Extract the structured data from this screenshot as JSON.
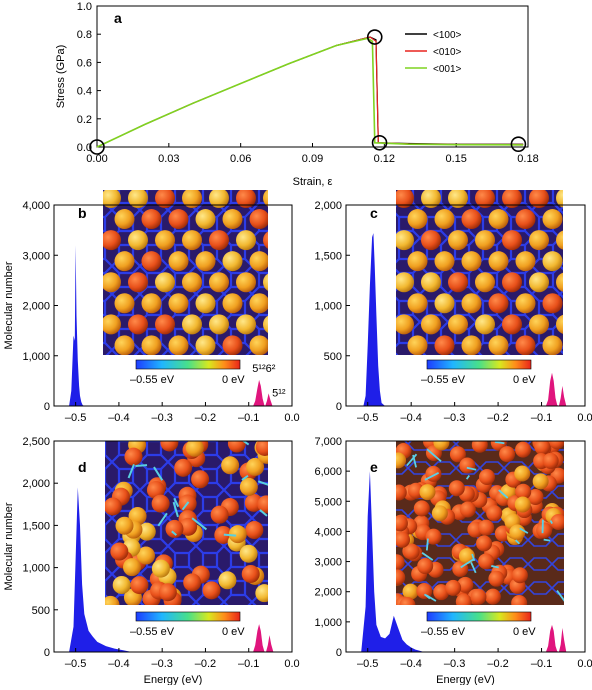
{
  "chart_data": [
    {
      "panel": "a",
      "type": "line",
      "xlabel": "Strain, ε",
      "ylabel": "Stress (GPa)",
      "xlim": [
        0,
        0.18
      ],
      "ylim": [
        0,
        1.0
      ],
      "xticks": [
        "0.00",
        "0.03",
        "0.06",
        "0.09",
        "0.12",
        "0.15",
        "0.18"
      ],
      "yticks": [
        "0.0",
        "0.2",
        "0.4",
        "0.6",
        "0.8",
        "1.0"
      ],
      "legend_position": "top-right",
      "series": [
        {
          "name": "<100>",
          "color": "#000000",
          "x": [
            0.0,
            0.02,
            0.04,
            0.06,
            0.08,
            0.1,
            0.114,
            0.1165,
            0.1175,
            0.13,
            0.15,
            0.178
          ],
          "y": [
            0.0,
            0.16,
            0.31,
            0.45,
            0.59,
            0.72,
            0.78,
            0.76,
            0.03,
            0.025,
            0.02,
            0.02
          ]
        },
        {
          "name": "<010>",
          "color": "#e8231f",
          "x": [
            0.0,
            0.02,
            0.04,
            0.06,
            0.08,
            0.1,
            0.114,
            0.1165,
            0.1175,
            0.13,
            0.15,
            0.178
          ],
          "y": [
            0.0,
            0.16,
            0.31,
            0.45,
            0.59,
            0.72,
            0.78,
            0.75,
            0.03,
            0.022,
            0.018,
            0.018
          ]
        },
        {
          "name": "<001>",
          "color": "#7fd321",
          "x": [
            0.0,
            0.02,
            0.04,
            0.06,
            0.08,
            0.1,
            0.113,
            0.115,
            0.116,
            0.13,
            0.15,
            0.178
          ],
          "y": [
            0.0,
            0.16,
            0.31,
            0.45,
            0.59,
            0.72,
            0.77,
            0.75,
            0.03,
            0.02,
            0.016,
            0.015
          ]
        }
      ],
      "markers_x": [
        0.0,
        0.116,
        0.118,
        0.176
      ],
      "markers_y": [
        0.0,
        0.78,
        0.03,
        0.02
      ]
    },
    {
      "panel": "b",
      "type": "area",
      "ylabel": "Molecular number",
      "xlim": [
        -0.55,
        0.0
      ],
      "ylim": [
        0,
        4000
      ],
      "yticks": [
        "0",
        "1,000",
        "2,000",
        "3,000",
        "4,000"
      ],
      "xticks": [
        "–0.5",
        "–0.4",
        "–0.3",
        "–0.2",
        "–0.1",
        "0.0"
      ],
      "annotations": [
        "5¹²6²",
        "5¹²"
      ],
      "blue_x": [
        -0.515,
        -0.51,
        -0.505,
        -0.502,
        -0.5,
        -0.498,
        -0.495,
        -0.492,
        -0.49,
        -0.487,
        -0.484,
        -0.48
      ],
      "blue_y": [
        0,
        300,
        1400,
        1300,
        3200,
        1800,
        900,
        400,
        200,
        80,
        20,
        0
      ],
      "pink_x": [
        -0.09,
        -0.085,
        -0.08,
        -0.076,
        -0.072,
        -0.068,
        -0.064,
        -0.062,
        -0.058,
        -0.054,
        -0.05,
        -0.045
      ],
      "pink_y": [
        0,
        100,
        350,
        520,
        400,
        150,
        20,
        0,
        100,
        250,
        120,
        0
      ]
    },
    {
      "panel": "c",
      "type": "area",
      "xlim": [
        -0.55,
        0.0
      ],
      "ylim": [
        0,
        2000
      ],
      "yticks": [
        "0",
        "500",
        "1,000",
        "1,500",
        "2,000"
      ],
      "xticks": [
        "–0.5",
        "–0.4",
        "–0.3",
        "–0.2",
        "–0.1",
        "0.0"
      ],
      "blue_x": [
        -0.51,
        -0.505,
        -0.5,
        -0.495,
        -0.49,
        -0.487,
        -0.484,
        -0.48,
        -0.476,
        -0.472,
        -0.468,
        -0.46
      ],
      "blue_y": [
        0,
        100,
        600,
        1200,
        1680,
        1720,
        1400,
        900,
        400,
        150,
        30,
        0
      ],
      "pink_x": [
        -0.09,
        -0.085,
        -0.08,
        -0.076,
        -0.072,
        -0.068,
        -0.064,
        -0.06,
        -0.056,
        -0.052,
        -0.048,
        -0.043
      ],
      "pink_y": [
        0,
        60,
        250,
        330,
        250,
        80,
        10,
        0,
        80,
        200,
        90,
        0
      ]
    },
    {
      "panel": "d",
      "type": "area",
      "ylabel": "Molecular number",
      "xlabel": "Energy (eV)",
      "xlim": [
        -0.55,
        0.0
      ],
      "ylim": [
        0,
        2500
      ],
      "yticks": [
        "0",
        "500",
        "1,000",
        "1,500",
        "2,000",
        "2,500"
      ],
      "xticks": [
        "–0.5",
        "–0.4",
        "–0.3",
        "–0.2",
        "–0.1",
        "0.0"
      ],
      "blue_x": [
        -0.515,
        -0.505,
        -0.5,
        -0.495,
        -0.49,
        -0.485,
        -0.48,
        -0.47,
        -0.46,
        -0.45,
        -0.43,
        -0.41,
        -0.39,
        -0.37
      ],
      "blue_y": [
        0,
        300,
        1100,
        1950,
        1500,
        800,
        450,
        250,
        180,
        120,
        70,
        40,
        20,
        0
      ],
      "pink_x": [
        -0.09,
        -0.085,
        -0.08,
        -0.076,
        -0.072,
        -0.068,
        -0.064,
        -0.06,
        -0.056,
        -0.052,
        -0.048,
        -0.043
      ],
      "pink_y": [
        0,
        80,
        250,
        330,
        250,
        80,
        10,
        0,
        80,
        200,
        90,
        0
      ]
    },
    {
      "panel": "e",
      "type": "area",
      "xlabel": "Energy (eV)",
      "xlim": [
        -0.55,
        0.0
      ],
      "ylim": [
        0,
        7000
      ],
      "yticks": [
        "0",
        "1,000",
        "2,000",
        "3,000",
        "4,000",
        "5,000",
        "6,000",
        "7,000"
      ],
      "xticks": [
        "–0.5",
        "–0.4",
        "–0.3",
        "–0.2",
        "–0.1",
        "0.0"
      ],
      "blue_x": [
        -0.515,
        -0.505,
        -0.5,
        -0.495,
        -0.49,
        -0.485,
        -0.48,
        -0.47,
        -0.46,
        -0.45,
        -0.44,
        -0.43,
        -0.42,
        -0.41,
        -0.4,
        -0.39,
        -0.37
      ],
      "blue_y": [
        0,
        1500,
        4500,
        6000,
        4000,
        2000,
        900,
        500,
        450,
        600,
        1200,
        800,
        400,
        250,
        150,
        80,
        0
      ],
      "pink_x": [
        -0.09,
        -0.085,
        -0.08,
        -0.076,
        -0.072,
        -0.068,
        -0.064,
        -0.06,
        -0.056,
        -0.052,
        -0.048,
        -0.043
      ],
      "pink_y": [
        0,
        200,
        700,
        900,
        700,
        200,
        30,
        0,
        250,
        800,
        400,
        0
      ]
    }
  ],
  "colorbar": {
    "min_label": "–0.55 eV",
    "max_label": "0 eV"
  },
  "colors": {
    "blue_peak": "#1f1fe8",
    "pink_peak": "#e0157d"
  }
}
